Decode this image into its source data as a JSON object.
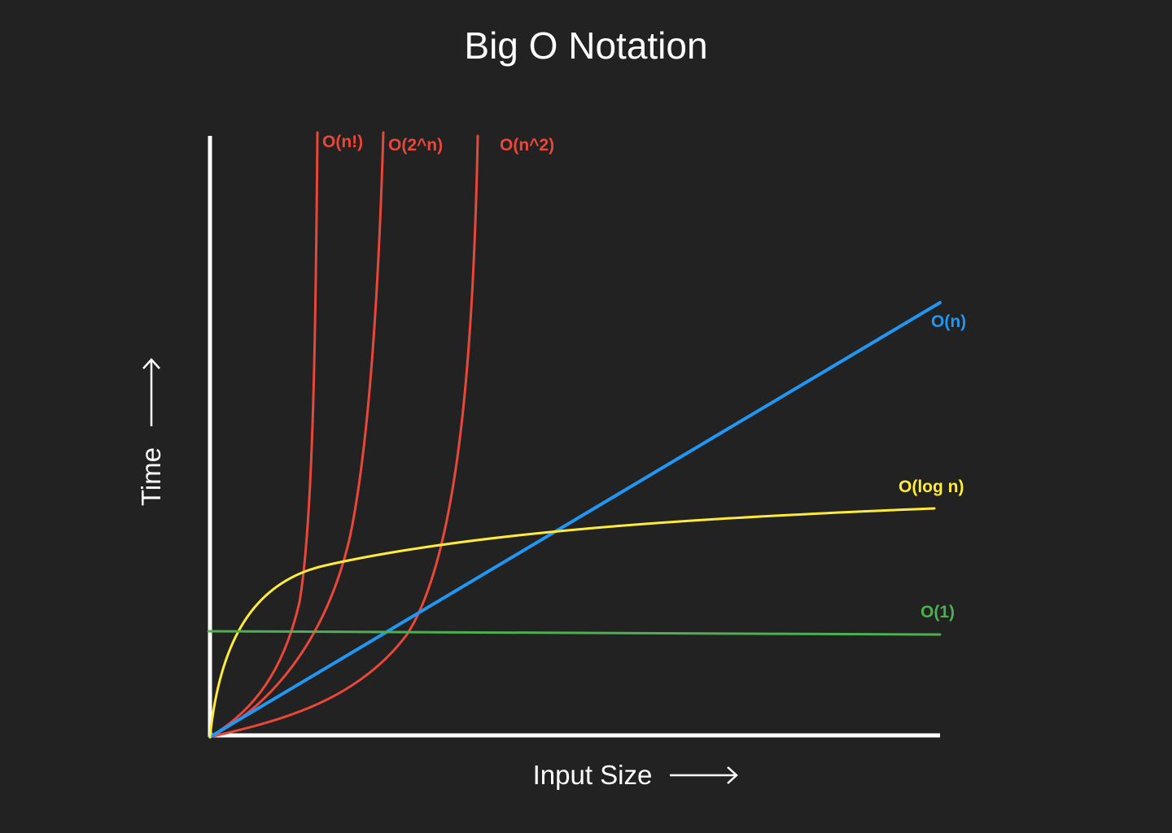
{
  "title": "Big O Notation",
  "xlabel": "Input Size",
  "ylabel": "Time",
  "colors": {
    "background": "#222222",
    "axis": "#ffffff",
    "red": "#e8473a",
    "blue": "#2196f3",
    "yellow": "#ffeb3b",
    "green": "#4caf50"
  },
  "chart_data": {
    "type": "line",
    "title": "Big O Notation",
    "xlabel": "Input Size",
    "ylabel": "Time",
    "axes_ticks": false,
    "series": [
      {
        "name": "O(n!)",
        "color": "#e8473a",
        "shape": "factorial",
        "label": "O(n!)"
      },
      {
        "name": "O(2^n)",
        "color": "#e8473a",
        "shape": "exponential",
        "label": "O(2^n)"
      },
      {
        "name": "O(n^2)",
        "color": "#e8473a",
        "shape": "quadratic",
        "label": "O(n^2)"
      },
      {
        "name": "O(n)",
        "color": "#2196f3",
        "shape": "linear",
        "label": "O(n)"
      },
      {
        "name": "O(log n)",
        "color": "#ffeb3b",
        "shape": "logarithmic",
        "label": "O(log n)"
      },
      {
        "name": "O(1)",
        "color": "#4caf50",
        "shape": "constant",
        "label": "O(1)"
      }
    ]
  }
}
